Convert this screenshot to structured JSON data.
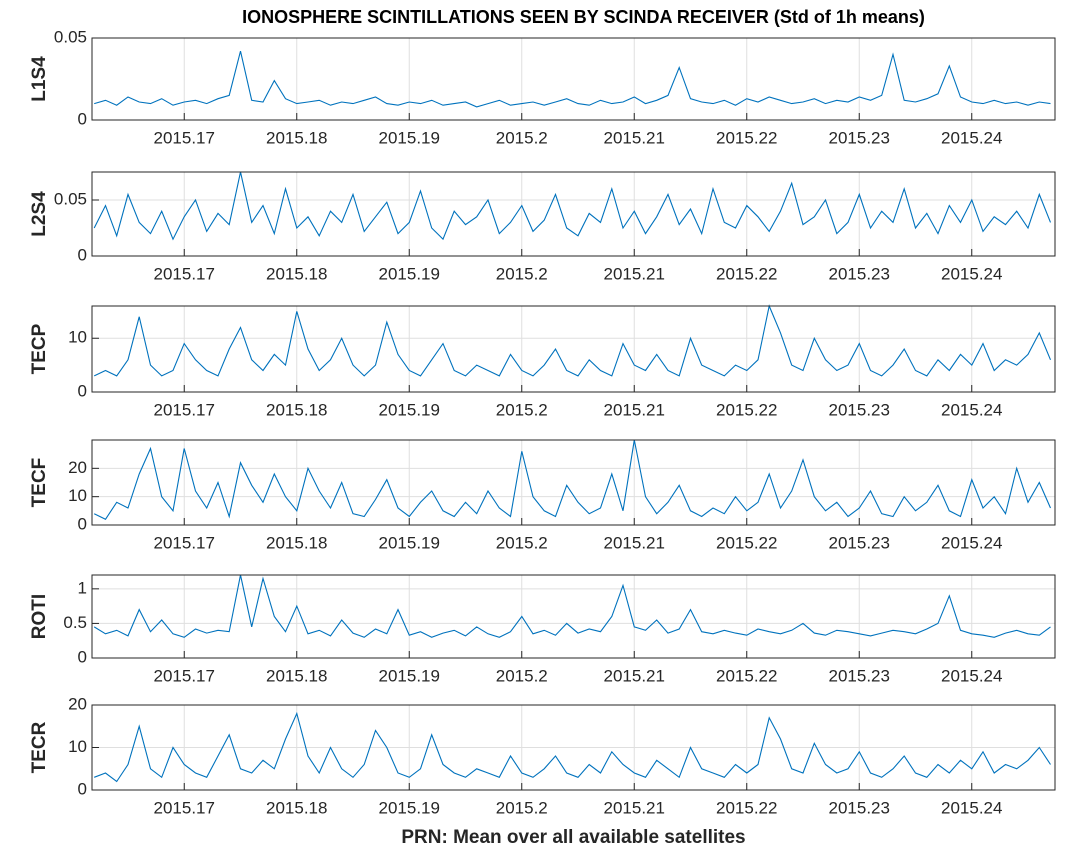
{
  "chart_data": [
    {
      "type": "line",
      "title": "IONOSPHERE SCINTILLATIONS SEEN BY SCINDA RECEIVER (Std of 1h means)",
      "ylabel": "L1S4",
      "color": "#0072bd",
      "grid": true,
      "xlim": [
        2015.1618,
        2015.2474
      ],
      "xticks": [
        2015.17,
        2015.18,
        2015.19,
        2015.2,
        2015.21,
        2015.22,
        2015.23,
        2015.24
      ],
      "ylim": [
        0,
        0.05
      ],
      "yticks": [
        0,
        0.05
      ],
      "x": [
        2015.162,
        2015.163,
        2015.164,
        2015.165,
        2015.166,
        2015.167,
        2015.168,
        2015.169,
        2015.17,
        2015.171,
        2015.172,
        2015.173,
        2015.174,
        2015.175,
        2015.176,
        2015.177,
        2015.178,
        2015.179,
        2015.18,
        2015.181,
        2015.182,
        2015.183,
        2015.184,
        2015.185,
        2015.186,
        2015.187,
        2015.188,
        2015.189,
        2015.19,
        2015.191,
        2015.192,
        2015.193,
        2015.194,
        2015.195,
        2015.196,
        2015.197,
        2015.198,
        2015.199,
        2015.2,
        2015.201,
        2015.202,
        2015.203,
        2015.204,
        2015.205,
        2015.206,
        2015.207,
        2015.208,
        2015.209,
        2015.21,
        2015.211,
        2015.212,
        2015.213,
        2015.214,
        2015.215,
        2015.216,
        2015.217,
        2015.218,
        2015.219,
        2015.22,
        2015.221,
        2015.222,
        2015.223,
        2015.224,
        2015.225,
        2015.226,
        2015.227,
        2015.228,
        2015.229,
        2015.23,
        2015.231,
        2015.232,
        2015.233,
        2015.234,
        2015.235,
        2015.236,
        2015.237,
        2015.238,
        2015.239,
        2015.24,
        2015.241,
        2015.242,
        2015.243,
        2015.244,
        2015.245,
        2015.246,
        2015.247
      ],
      "values": [
        0.01,
        0.012,
        0.009,
        0.014,
        0.011,
        0.01,
        0.013,
        0.009,
        0.011,
        0.012,
        0.01,
        0.013,
        0.015,
        0.042,
        0.012,
        0.011,
        0.024,
        0.013,
        0.01,
        0.011,
        0.012,
        0.009,
        0.011,
        0.01,
        0.012,
        0.014,
        0.01,
        0.009,
        0.011,
        0.01,
        0.012,
        0.009,
        0.01,
        0.011,
        0.008,
        0.01,
        0.012,
        0.009,
        0.01,
        0.011,
        0.009,
        0.011,
        0.013,
        0.01,
        0.009,
        0.012,
        0.01,
        0.011,
        0.014,
        0.01,
        0.012,
        0.015,
        0.032,
        0.013,
        0.011,
        0.01,
        0.012,
        0.009,
        0.013,
        0.011,
        0.014,
        0.012,
        0.01,
        0.011,
        0.013,
        0.01,
        0.012,
        0.011,
        0.014,
        0.012,
        0.015,
        0.04,
        0.012,
        0.011,
        0.013,
        0.016,
        0.033,
        0.014,
        0.011,
        0.01,
        0.012,
        0.01,
        0.011,
        0.009,
        0.011,
        0.01
      ]
    },
    {
      "type": "line",
      "ylabel": "L2S4",
      "color": "#0072bd",
      "grid": true,
      "xlim": [
        2015.1618,
        2015.2474
      ],
      "xticks": [
        2015.17,
        2015.18,
        2015.19,
        2015.2,
        2015.21,
        2015.22,
        2015.23,
        2015.24
      ],
      "ylim": [
        0,
        0.075
      ],
      "yticks": [
        0,
        0.05
      ],
      "x": [
        2015.162,
        2015.163,
        2015.164,
        2015.165,
        2015.166,
        2015.167,
        2015.168,
        2015.169,
        2015.17,
        2015.171,
        2015.172,
        2015.173,
        2015.174,
        2015.175,
        2015.176,
        2015.177,
        2015.178,
        2015.179,
        2015.18,
        2015.181,
        2015.182,
        2015.183,
        2015.184,
        2015.185,
        2015.186,
        2015.187,
        2015.188,
        2015.189,
        2015.19,
        2015.191,
        2015.192,
        2015.193,
        2015.194,
        2015.195,
        2015.196,
        2015.197,
        2015.198,
        2015.199,
        2015.2,
        2015.201,
        2015.202,
        2015.203,
        2015.204,
        2015.205,
        2015.206,
        2015.207,
        2015.208,
        2015.209,
        2015.21,
        2015.211,
        2015.212,
        2015.213,
        2015.214,
        2015.215,
        2015.216,
        2015.217,
        2015.218,
        2015.219,
        2015.22,
        2015.221,
        2015.222,
        2015.223,
        2015.224,
        2015.225,
        2015.226,
        2015.227,
        2015.228,
        2015.229,
        2015.23,
        2015.231,
        2015.232,
        2015.233,
        2015.234,
        2015.235,
        2015.236,
        2015.237,
        2015.238,
        2015.239,
        2015.24,
        2015.241,
        2015.242,
        2015.243,
        2015.244,
        2015.245,
        2015.246,
        2015.247
      ],
      "values": [
        0.025,
        0.045,
        0.018,
        0.055,
        0.03,
        0.02,
        0.04,
        0.015,
        0.035,
        0.05,
        0.022,
        0.038,
        0.028,
        0.075,
        0.03,
        0.045,
        0.02,
        0.06,
        0.025,
        0.035,
        0.018,
        0.04,
        0.03,
        0.055,
        0.022,
        0.035,
        0.048,
        0.02,
        0.03,
        0.058,
        0.025,
        0.015,
        0.04,
        0.028,
        0.035,
        0.05,
        0.02,
        0.03,
        0.045,
        0.022,
        0.032,
        0.055,
        0.025,
        0.018,
        0.038,
        0.03,
        0.06,
        0.025,
        0.04,
        0.02,
        0.035,
        0.055,
        0.028,
        0.042,
        0.02,
        0.06,
        0.03,
        0.025,
        0.045,
        0.035,
        0.022,
        0.04,
        0.065,
        0.028,
        0.035,
        0.05,
        0.02,
        0.03,
        0.055,
        0.025,
        0.04,
        0.03,
        0.06,
        0.025,
        0.038,
        0.02,
        0.045,
        0.03,
        0.05,
        0.022,
        0.035,
        0.028,
        0.04,
        0.025,
        0.055,
        0.03
      ]
    },
    {
      "type": "line",
      "ylabel": "TECP",
      "color": "#0072bd",
      "grid": true,
      "xlim": [
        2015.1618,
        2015.2474
      ],
      "xticks": [
        2015.17,
        2015.18,
        2015.19,
        2015.2,
        2015.21,
        2015.22,
        2015.23,
        2015.24
      ],
      "ylim": [
        0,
        16
      ],
      "yticks": [
        0,
        10
      ],
      "x": [
        2015.162,
        2015.163,
        2015.164,
        2015.165,
        2015.166,
        2015.167,
        2015.168,
        2015.169,
        2015.17,
        2015.171,
        2015.172,
        2015.173,
        2015.174,
        2015.175,
        2015.176,
        2015.177,
        2015.178,
        2015.179,
        2015.18,
        2015.181,
        2015.182,
        2015.183,
        2015.184,
        2015.185,
        2015.186,
        2015.187,
        2015.188,
        2015.189,
        2015.19,
        2015.191,
        2015.192,
        2015.193,
        2015.194,
        2015.195,
        2015.196,
        2015.197,
        2015.198,
        2015.199,
        2015.2,
        2015.201,
        2015.202,
        2015.203,
        2015.204,
        2015.205,
        2015.206,
        2015.207,
        2015.208,
        2015.209,
        2015.21,
        2015.211,
        2015.212,
        2015.213,
        2015.214,
        2015.215,
        2015.216,
        2015.217,
        2015.218,
        2015.219,
        2015.22,
        2015.221,
        2015.222,
        2015.223,
        2015.224,
        2015.225,
        2015.226,
        2015.227,
        2015.228,
        2015.229,
        2015.23,
        2015.231,
        2015.232,
        2015.233,
        2015.234,
        2015.235,
        2015.236,
        2015.237,
        2015.238,
        2015.239,
        2015.24,
        2015.241,
        2015.242,
        2015.243,
        2015.244,
        2015.245,
        2015.246,
        2015.247
      ],
      "values": [
        3,
        4,
        3,
        6,
        14,
        5,
        3,
        4,
        9,
        6,
        4,
        3,
        8,
        12,
        6,
        4,
        7,
        5,
        15,
        8,
        4,
        6,
        10,
        5,
        3,
        5,
        13,
        7,
        4,
        3,
        6,
        9,
        4,
        3,
        5,
        4,
        3,
        7,
        4,
        3,
        5,
        8,
        4,
        3,
        6,
        4,
        3,
        9,
        5,
        4,
        7,
        4,
        3,
        10,
        5,
        4,
        3,
        5,
        4,
        6,
        16,
        11,
        5,
        4,
        10,
        6,
        4,
        5,
        9,
        4,
        3,
        5,
        8,
        4,
        3,
        6,
        4,
        7,
        5,
        9,
        4,
        6,
        5,
        7,
        11,
        6
      ]
    },
    {
      "type": "line",
      "ylabel": "TECF",
      "color": "#0072bd",
      "grid": true,
      "xlim": [
        2015.1618,
        2015.2474
      ],
      "xticks": [
        2015.17,
        2015.18,
        2015.19,
        2015.2,
        2015.21,
        2015.22,
        2015.23,
        2015.24
      ],
      "ylim": [
        0,
        30
      ],
      "yticks": [
        0,
        10,
        20
      ],
      "x": [
        2015.162,
        2015.163,
        2015.164,
        2015.165,
        2015.166,
        2015.167,
        2015.168,
        2015.169,
        2015.17,
        2015.171,
        2015.172,
        2015.173,
        2015.174,
        2015.175,
        2015.176,
        2015.177,
        2015.178,
        2015.179,
        2015.18,
        2015.181,
        2015.182,
        2015.183,
        2015.184,
        2015.185,
        2015.186,
        2015.187,
        2015.188,
        2015.189,
        2015.19,
        2015.191,
        2015.192,
        2015.193,
        2015.194,
        2015.195,
        2015.196,
        2015.197,
        2015.198,
        2015.199,
        2015.2,
        2015.201,
        2015.202,
        2015.203,
        2015.204,
        2015.205,
        2015.206,
        2015.207,
        2015.208,
        2015.209,
        2015.21,
        2015.211,
        2015.212,
        2015.213,
        2015.214,
        2015.215,
        2015.216,
        2015.217,
        2015.218,
        2015.219,
        2015.22,
        2015.221,
        2015.222,
        2015.223,
        2015.224,
        2015.225,
        2015.226,
        2015.227,
        2015.228,
        2015.229,
        2015.23,
        2015.231,
        2015.232,
        2015.233,
        2015.234,
        2015.235,
        2015.236,
        2015.237,
        2015.238,
        2015.239,
        2015.24,
        2015.241,
        2015.242,
        2015.243,
        2015.244,
        2015.245,
        2015.246,
        2015.247
      ],
      "values": [
        4,
        2,
        8,
        6,
        18,
        27,
        10,
        5,
        27,
        12,
        6,
        15,
        3,
        22,
        14,
        8,
        18,
        10,
        5,
        20,
        12,
        6,
        15,
        4,
        3,
        9,
        16,
        6,
        3,
        8,
        12,
        5,
        3,
        8,
        4,
        12,
        6,
        3,
        26,
        10,
        5,
        3,
        14,
        8,
        4,
        6,
        18,
        5,
        30,
        10,
        4,
        8,
        14,
        5,
        3,
        6,
        4,
        10,
        5,
        8,
        18,
        6,
        12,
        23,
        10,
        5,
        8,
        3,
        6,
        12,
        4,
        3,
        10,
        5,
        8,
        14,
        5,
        3,
        16,
        6,
        10,
        4,
        20,
        8,
        15,
        6
      ]
    },
    {
      "type": "line",
      "ylabel": "ROTI",
      "color": "#0072bd",
      "grid": true,
      "xlim": [
        2015.1618,
        2015.2474
      ],
      "xticks": [
        2015.17,
        2015.18,
        2015.19,
        2015.2,
        2015.21,
        2015.22,
        2015.23,
        2015.24
      ],
      "ylim": [
        0,
        1.2
      ],
      "yticks": [
        0,
        0.5,
        1
      ],
      "x": [
        2015.162,
        2015.163,
        2015.164,
        2015.165,
        2015.166,
        2015.167,
        2015.168,
        2015.169,
        2015.17,
        2015.171,
        2015.172,
        2015.173,
        2015.174,
        2015.175,
        2015.176,
        2015.177,
        2015.178,
        2015.179,
        2015.18,
        2015.181,
        2015.182,
        2015.183,
        2015.184,
        2015.185,
        2015.186,
        2015.187,
        2015.188,
        2015.189,
        2015.19,
        2015.191,
        2015.192,
        2015.193,
        2015.194,
        2015.195,
        2015.196,
        2015.197,
        2015.198,
        2015.199,
        2015.2,
        2015.201,
        2015.202,
        2015.203,
        2015.204,
        2015.205,
        2015.206,
        2015.207,
        2015.208,
        2015.209,
        2015.21,
        2015.211,
        2015.212,
        2015.213,
        2015.214,
        2015.215,
        2015.216,
        2015.217,
        2015.218,
        2015.219,
        2015.22,
        2015.221,
        2015.222,
        2015.223,
        2015.224,
        2015.225,
        2015.226,
        2015.227,
        2015.228,
        2015.229,
        2015.23,
        2015.231,
        2015.232,
        2015.233,
        2015.234,
        2015.235,
        2015.236,
        2015.237,
        2015.238,
        2015.239,
        2015.24,
        2015.241,
        2015.242,
        2015.243,
        2015.244,
        2015.245,
        2015.246,
        2015.247
      ],
      "values": [
        0.45,
        0.35,
        0.4,
        0.32,
        0.7,
        0.38,
        0.55,
        0.35,
        0.3,
        0.42,
        0.36,
        0.4,
        0.38,
        1.2,
        0.45,
        1.15,
        0.6,
        0.38,
        0.75,
        0.35,
        0.4,
        0.32,
        0.55,
        0.36,
        0.3,
        0.42,
        0.35,
        0.7,
        0.33,
        0.38,
        0.3,
        0.36,
        0.4,
        0.32,
        0.45,
        0.35,
        0.3,
        0.38,
        0.6,
        0.35,
        0.4,
        0.33,
        0.5,
        0.36,
        0.42,
        0.38,
        0.6,
        1.05,
        0.45,
        0.4,
        0.55,
        0.36,
        0.42,
        0.7,
        0.38,
        0.35,
        0.4,
        0.36,
        0.33,
        0.42,
        0.38,
        0.35,
        0.4,
        0.5,
        0.36,
        0.33,
        0.4,
        0.38,
        0.35,
        0.32,
        0.36,
        0.4,
        0.38,
        0.35,
        0.42,
        0.5,
        0.9,
        0.4,
        0.35,
        0.33,
        0.3,
        0.36,
        0.4,
        0.35,
        0.33,
        0.45
      ]
    },
    {
      "type": "line",
      "ylabel": "TECR",
      "xlabel": "PRN: Mean over all available satellites",
      "color": "#0072bd",
      "grid": true,
      "xlim": [
        2015.1618,
        2015.2474
      ],
      "xticks": [
        2015.17,
        2015.18,
        2015.19,
        2015.2,
        2015.21,
        2015.22,
        2015.23,
        2015.24
      ],
      "ylim": [
        0,
        20
      ],
      "yticks": [
        0,
        10,
        20
      ],
      "x": [
        2015.162,
        2015.163,
        2015.164,
        2015.165,
        2015.166,
        2015.167,
        2015.168,
        2015.169,
        2015.17,
        2015.171,
        2015.172,
        2015.173,
        2015.174,
        2015.175,
        2015.176,
        2015.177,
        2015.178,
        2015.179,
        2015.18,
        2015.181,
        2015.182,
        2015.183,
        2015.184,
        2015.185,
        2015.186,
        2015.187,
        2015.188,
        2015.189,
        2015.19,
        2015.191,
        2015.192,
        2015.193,
        2015.194,
        2015.195,
        2015.196,
        2015.197,
        2015.198,
        2015.199,
        2015.2,
        2015.201,
        2015.202,
        2015.203,
        2015.204,
        2015.205,
        2015.206,
        2015.207,
        2015.208,
        2015.209,
        2015.21,
        2015.211,
        2015.212,
        2015.213,
        2015.214,
        2015.215,
        2015.216,
        2015.217,
        2015.218,
        2015.219,
        2015.22,
        2015.221,
        2015.222,
        2015.223,
        2015.224,
        2015.225,
        2015.226,
        2015.227,
        2015.228,
        2015.229,
        2015.23,
        2015.231,
        2015.232,
        2015.233,
        2015.234,
        2015.235,
        2015.236,
        2015.237,
        2015.238,
        2015.239,
        2015.24,
        2015.241,
        2015.242,
        2015.243,
        2015.244,
        2015.245,
        2015.246,
        2015.247
      ],
      "values": [
        3,
        4,
        2,
        6,
        15,
        5,
        3,
        10,
        6,
        4,
        3,
        8,
        13,
        5,
        4,
        7,
        5,
        12,
        18,
        8,
        4,
        10,
        5,
        3,
        6,
        14,
        10,
        4,
        3,
        5,
        13,
        6,
        4,
        3,
        5,
        4,
        3,
        8,
        4,
        3,
        5,
        8,
        4,
        3,
        6,
        4,
        9,
        6,
        4,
        3,
        7,
        5,
        3,
        10,
        5,
        4,
        3,
        6,
        4,
        6,
        17,
        12,
        5,
        4,
        11,
        6,
        4,
        5,
        9,
        4,
        3,
        5,
        8,
        4,
        3,
        6,
        4,
        7,
        5,
        9,
        4,
        6,
        5,
        7,
        10,
        6
      ]
    }
  ]
}
